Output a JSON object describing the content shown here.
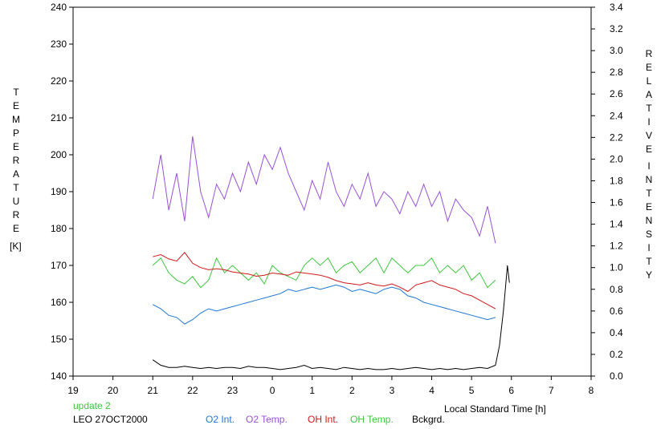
{
  "chart_data": {
    "type": "line",
    "left_axis": {
      "letters": [
        "T",
        "E",
        "M",
        "P",
        "E",
        "R",
        "A",
        "T",
        "U",
        "R",
        "E"
      ],
      "unit": "[K]",
      "ylim": [
        140,
        240
      ],
      "ticks": [
        "140",
        "150",
        "160",
        "170",
        "180",
        "190",
        "200",
        "210",
        "220",
        "230",
        "240"
      ]
    },
    "right_axis": {
      "letters": [
        "R",
        "E",
        "L",
        "A",
        "T",
        "I",
        "V",
        "E",
        "I",
        "N",
        "T",
        "E",
        "N",
        "S",
        "I",
        "T",
        "Y"
      ],
      "ylim": [
        0,
        3.4
      ],
      "ticks": [
        "0.0",
        "0.2",
        "0.4",
        "0.6",
        "0.8",
        "1.0",
        "1.2",
        "1.4",
        "1.6",
        "1.8",
        "2.0",
        "2.2",
        "2.4",
        "2.6",
        "2.8",
        "3.0",
        "3.2",
        "3.4"
      ]
    },
    "x_axis": {
      "label": "Local Standard Time [h]",
      "ticks": [
        "19",
        "20",
        "21",
        "22",
        "23",
        "0",
        "1",
        "2",
        "3",
        "4",
        "5",
        "6",
        "7",
        "8"
      ],
      "xlim": [
        19,
        32
      ]
    },
    "status_text": "update 2",
    "station": "LEO 27OCT2000",
    "legend": [
      {
        "label": "O2 Int.",
        "color": "#1e78d2"
      },
      {
        "label": "O2 Temp.",
        "color": "#9a50d8"
      },
      {
        "label": "OH Int.",
        "color": "#d01818"
      },
      {
        "label": "OH Temp.",
        "color": "#3cc83c"
      },
      {
        "label": "Bckgrd.",
        "color": "#000000"
      }
    ],
    "series": [
      {
        "name": "O2 Temp.",
        "axis": "left",
        "color": "#9a50d8",
        "x": [
          21.0,
          21.2,
          21.4,
          21.6,
          21.8,
          22.0,
          22.2,
          22.4,
          22.6,
          22.8,
          23.0,
          23.2,
          23.4,
          23.6,
          23.8,
          24.0,
          24.2,
          24.4,
          24.6,
          24.8,
          25.0,
          25.2,
          25.4,
          25.6,
          25.8,
          26.0,
          26.2,
          26.4,
          26.6,
          26.8,
          27.0,
          27.2,
          27.4,
          27.6,
          27.8,
          28.0,
          28.2,
          28.4,
          28.6,
          28.8,
          29.0,
          29.2,
          29.4,
          29.6
        ],
        "y": [
          188,
          200,
          185,
          195,
          182,
          205,
          190,
          183,
          192,
          188,
          195,
          190,
          198,
          192,
          200,
          196,
          202,
          195,
          190,
          185,
          193,
          188,
          198,
          190,
          186,
          192,
          188,
          195,
          186,
          190,
          188,
          184,
          190,
          186,
          192,
          186,
          190,
          182,
          188,
          185,
          183,
          178,
          186,
          176
        ]
      },
      {
        "name": "OH Temp.",
        "axis": "left",
        "color": "#3cc83c",
        "x": [
          21.0,
          21.2,
          21.4,
          21.6,
          21.8,
          22.0,
          22.2,
          22.4,
          22.6,
          22.8,
          23.0,
          23.2,
          23.4,
          23.6,
          23.8,
          24.0,
          24.2,
          24.4,
          24.6,
          24.8,
          25.0,
          25.2,
          25.4,
          25.6,
          25.8,
          26.0,
          26.2,
          26.4,
          26.6,
          26.8,
          27.0,
          27.2,
          27.4,
          27.6,
          27.8,
          28.0,
          28.2,
          28.4,
          28.6,
          28.8,
          29.0,
          29.2,
          29.4,
          29.6
        ],
        "y": [
          170,
          172,
          168,
          166,
          165,
          167,
          164,
          166,
          172,
          168,
          170,
          168,
          166,
          168,
          165,
          170,
          168,
          167,
          166,
          170,
          172,
          170,
          172,
          168,
          170,
          171,
          168,
          170,
          172,
          168,
          172,
          170,
          168,
          170,
          170,
          172,
          168,
          170,
          168,
          170,
          166,
          168,
          164,
          166
        ]
      },
      {
        "name": "OH Int.",
        "axis": "right",
        "color": "#d01818",
        "x": [
          21.0,
          21.2,
          21.4,
          21.6,
          21.8,
          22.0,
          22.2,
          22.4,
          22.6,
          22.8,
          23.0,
          23.2,
          23.4,
          23.6,
          23.8,
          24.0,
          24.2,
          24.4,
          24.6,
          24.8,
          25.0,
          25.2,
          25.4,
          25.6,
          25.8,
          26.0,
          26.2,
          26.4,
          26.6,
          26.8,
          27.0,
          27.2,
          27.4,
          27.6,
          27.8,
          28.0,
          28.2,
          28.4,
          28.6,
          28.8,
          29.0,
          29.2,
          29.4,
          29.6
        ],
        "y": [
          1.1,
          1.12,
          1.08,
          1.06,
          1.14,
          1.04,
          1.0,
          0.98,
          0.99,
          0.98,
          0.96,
          0.95,
          0.94,
          0.92,
          0.93,
          0.95,
          0.94,
          0.93,
          0.96,
          0.95,
          0.94,
          0.93,
          0.91,
          0.88,
          0.86,
          0.85,
          0.84,
          0.86,
          0.84,
          0.83,
          0.85,
          0.82,
          0.78,
          0.84,
          0.86,
          0.88,
          0.84,
          0.82,
          0.8,
          0.76,
          0.74,
          0.7,
          0.66,
          0.62
        ]
      },
      {
        "name": "O2 Int.",
        "axis": "right",
        "color": "#1e78d2",
        "x": [
          21.0,
          21.2,
          21.4,
          21.6,
          21.8,
          22.0,
          22.2,
          22.4,
          22.6,
          22.8,
          23.0,
          23.2,
          23.4,
          23.6,
          23.8,
          24.0,
          24.2,
          24.4,
          24.6,
          24.8,
          25.0,
          25.2,
          25.4,
          25.6,
          25.8,
          26.0,
          26.2,
          26.4,
          26.6,
          26.8,
          27.0,
          27.2,
          27.4,
          27.6,
          27.8,
          28.0,
          28.2,
          28.4,
          28.6,
          28.8,
          29.0,
          29.2,
          29.4,
          29.6
        ],
        "y": [
          0.66,
          0.62,
          0.56,
          0.54,
          0.48,
          0.52,
          0.58,
          0.62,
          0.6,
          0.62,
          0.64,
          0.66,
          0.68,
          0.7,
          0.72,
          0.74,
          0.76,
          0.8,
          0.78,
          0.8,
          0.82,
          0.8,
          0.82,
          0.84,
          0.82,
          0.78,
          0.8,
          0.78,
          0.76,
          0.8,
          0.82,
          0.8,
          0.74,
          0.72,
          0.68,
          0.66,
          0.64,
          0.62,
          0.6,
          0.58,
          0.56,
          0.54,
          0.52,
          0.54
        ]
      },
      {
        "name": "Bckgrd.",
        "axis": "right",
        "color": "#000000",
        "x": [
          21.0,
          21.2,
          21.4,
          21.6,
          21.8,
          22.0,
          22.2,
          22.4,
          22.6,
          22.8,
          23.0,
          23.2,
          23.4,
          23.6,
          23.8,
          24.0,
          24.2,
          24.4,
          24.6,
          24.8,
          25.0,
          25.2,
          25.4,
          25.6,
          25.8,
          26.0,
          26.2,
          26.4,
          26.6,
          26.8,
          27.0,
          27.2,
          27.4,
          27.6,
          27.8,
          28.0,
          28.2,
          28.4,
          28.6,
          28.8,
          29.0,
          29.2,
          29.4,
          29.6,
          29.7,
          29.8,
          29.9,
          29.95
        ],
        "y": [
          0.15,
          0.1,
          0.08,
          0.08,
          0.09,
          0.08,
          0.07,
          0.08,
          0.07,
          0.08,
          0.08,
          0.07,
          0.09,
          0.08,
          0.08,
          0.07,
          0.06,
          0.07,
          0.08,
          0.1,
          0.07,
          0.08,
          0.07,
          0.06,
          0.08,
          0.07,
          0.06,
          0.07,
          0.06,
          0.06,
          0.07,
          0.06,
          0.07,
          0.08,
          0.07,
          0.06,
          0.07,
          0.06,
          0.07,
          0.06,
          0.07,
          0.08,
          0.07,
          0.1,
          0.28,
          0.6,
          1.02,
          0.86
        ]
      }
    ]
  }
}
